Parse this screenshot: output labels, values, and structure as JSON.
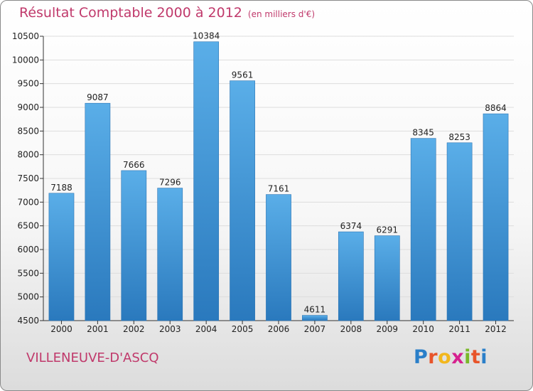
{
  "title": "Résultat Comptable 2000 à 2012",
  "unit_note": "(en milliers d'€)",
  "commune": "VILLENEUVE-D'ASCQ",
  "brand": {
    "letters": [
      "P",
      "r",
      "o",
      "x",
      "i",
      "t",
      "i"
    ],
    "colors": [
      "#2a7fc9",
      "#e8542a",
      "#f2b71d",
      "#d6218f",
      "#7ab829",
      "#e8542a",
      "#2a7fc9"
    ]
  },
  "colors": {
    "title": "#c0396b",
    "bar_top": "#5aaee8",
    "bar_bottom": "#2a79bd",
    "grid": "#dddddd",
    "axis": "#333333"
  },
  "chart_data": {
    "type": "bar",
    "categories": [
      "2000",
      "2001",
      "2002",
      "2003",
      "2004",
      "2005",
      "2006",
      "2007",
      "2008",
      "2009",
      "2010",
      "2011",
      "2012"
    ],
    "values": [
      7188,
      9087,
      7666,
      7296,
      10384,
      9561,
      7161,
      4611,
      6374,
      6291,
      8345,
      8253,
      8864
    ],
    "ylim": [
      4500,
      10500
    ],
    "yticks": [
      4500,
      5000,
      5500,
      6000,
      6500,
      7000,
      7500,
      8000,
      8500,
      9000,
      9500,
      10000,
      10500
    ],
    "grid": true,
    "title": "Résultat Comptable 2000 à 2012",
    "xlabel": "",
    "ylabel": ""
  }
}
